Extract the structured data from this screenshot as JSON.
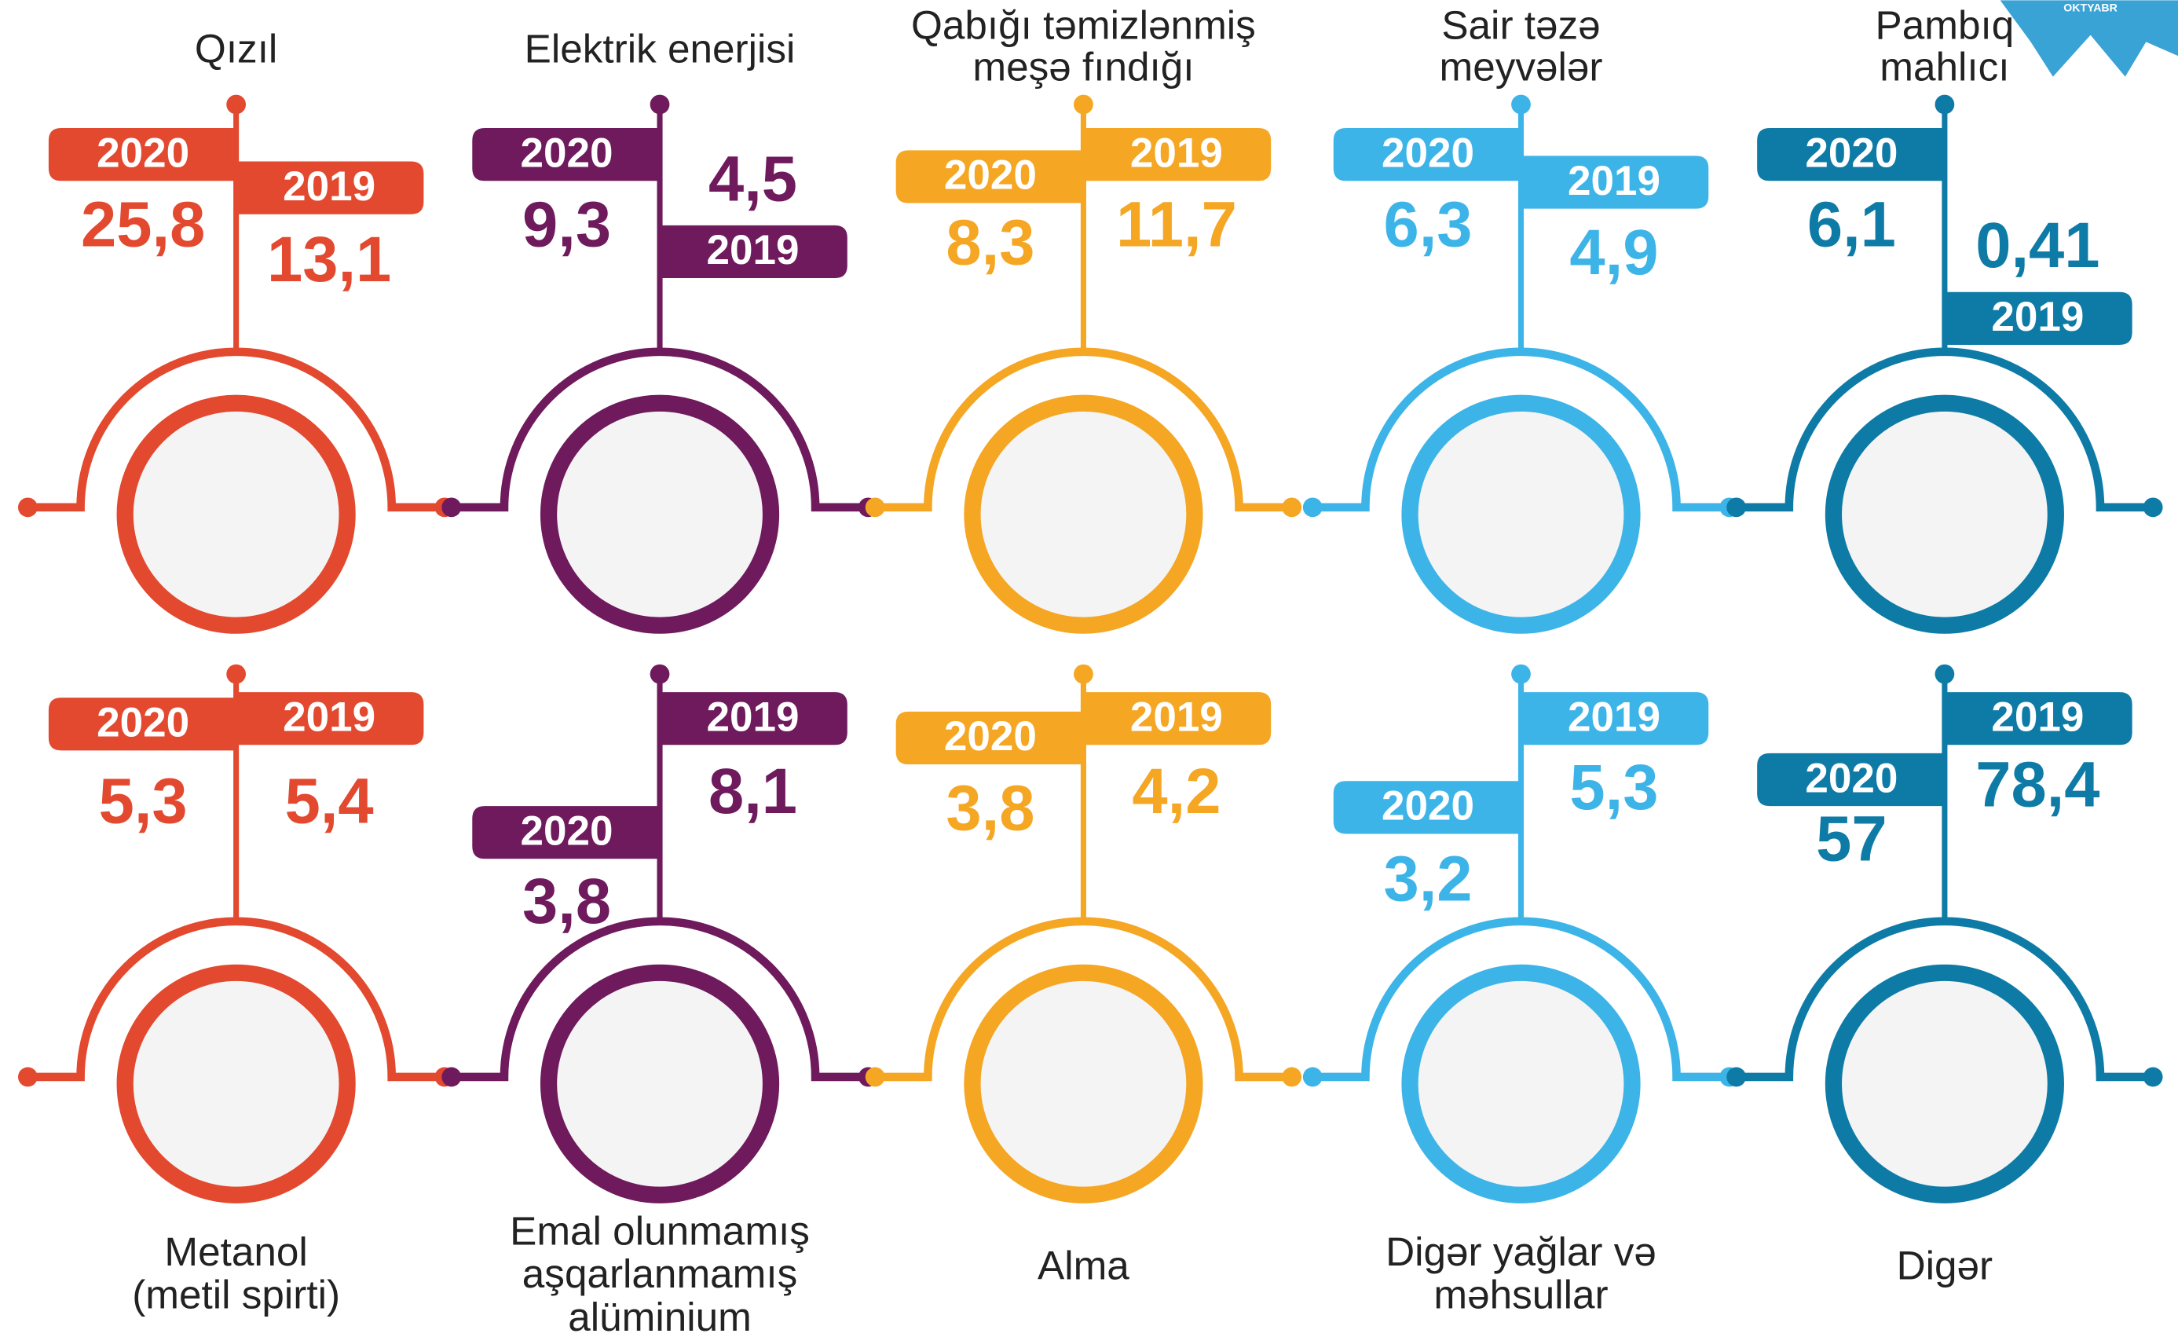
{
  "badge": "OKTYABR",
  "items": [
    {
      "title": [
        "Qızıl"
      ],
      "color": "#e2492f",
      "year_2020": "2020",
      "value_2020": "25,8",
      "year_2019": "2019",
      "value_2019": "13,1"
    },
    {
      "title": [
        "Elektrik enerjisi"
      ],
      "color": "#6e1a5c",
      "year_2020": "2020",
      "value_2020": "9,3",
      "year_2019": "2019",
      "value_2019": "4,5"
    },
    {
      "title": [
        "Qabığı təmizlənmiş",
        "meşə fındığı"
      ],
      "color": "#f5a623",
      "year_2020": "2020",
      "value_2020": "8,3",
      "year_2019": "2019",
      "value_2019": "11,7"
    },
    {
      "title": [
        "Sair təzə",
        "meyvələr"
      ],
      "color": "#3db4e8",
      "year_2020": "2020",
      "value_2020": "6,3",
      "year_2019": "2019",
      "value_2019": "4,9"
    },
    {
      "title": [
        "Pambıq",
        "mahlıcı"
      ],
      "color": "#0e7ba6",
      "year_2020": "2020",
      "value_2020": "6,1",
      "year_2019": "2019",
      "value_2019": "0,41"
    },
    {
      "title": [
        "Metanol",
        "(metil spirti)"
      ],
      "color": "#e2492f",
      "year_2020": "2020",
      "value_2020": "5,3",
      "year_2019": "2019",
      "value_2019": "5,4"
    },
    {
      "title": [
        "Emal olunmamış",
        "aşqarlanmamış",
        "alüminium"
      ],
      "color": "#6e1a5c",
      "year_2020": "2020",
      "value_2020": "3,8",
      "year_2019": "2019",
      "value_2019": "8,1"
    },
    {
      "title": [
        "Alma"
      ],
      "color": "#f5a623",
      "year_2020": "2020",
      "value_2020": "3,8",
      "year_2019": "2019",
      "value_2019": "4,2"
    },
    {
      "title": [
        "Digər yağlar və",
        "məhsullar"
      ],
      "color": "#3db4e8",
      "year_2020": "2020",
      "value_2020": "3,2",
      "year_2019": "2019",
      "value_2019": "5,3"
    },
    {
      "title": [
        "Digər"
      ],
      "color": "#0e7ba6",
      "year_2020": "2020",
      "value_2020": "57",
      "year_2019": "2019",
      "value_2019": "78,4"
    }
  ]
}
